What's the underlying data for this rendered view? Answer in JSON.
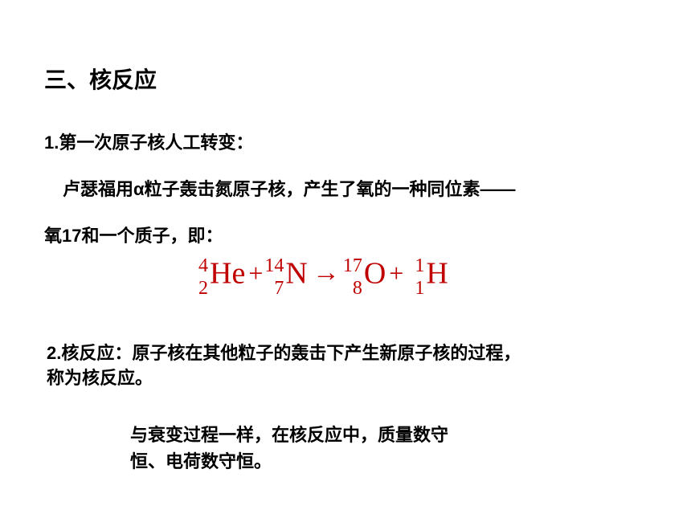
{
  "section": {
    "title": "三、核反应"
  },
  "subsection1": {
    "heading": "1.第一次原子核人工转变：",
    "line1": "卢瑟福用α粒子轰击氮原子核，产生了氧的一种同位素——",
    "line2": "氧17和一个质子，即："
  },
  "equation": {
    "nuclide1": {
      "mass": "4",
      "atomic": "2",
      "symbol": "He"
    },
    "nuclide2": {
      "mass": "14",
      "atomic": "7",
      "symbol": "N"
    },
    "nuclide3": {
      "mass": "17",
      "atomic": "8",
      "symbol": "O"
    },
    "nuclide4": {
      "mass": "1",
      "atomic": "1",
      "symbol": "H"
    },
    "plus": "+",
    "arrow": "→",
    "color": "#c00000",
    "fontsize": 38
  },
  "subsection2": {
    "line1": "2.核反应：原子核在其他粒子的轰击下产生新原子核的过程，",
    "line2": "称为核反应。"
  },
  "conservation": {
    "line1": "与衰变过程一样，在核反应中，质量数守",
    "line2": "恒、电荷数守恒。"
  }
}
